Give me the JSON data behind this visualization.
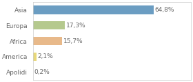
{
  "categories": [
    "Asia",
    "Europa",
    "Africa",
    "America",
    "Apolidi"
  ],
  "values": [
    64.8,
    17.3,
    15.7,
    2.1,
    0.2
  ],
  "labels": [
    "64,8%",
    "17,3%",
    "15,7%",
    "2,1%",
    "0,2%"
  ],
  "bar_colors": [
    "#6b9dc2",
    "#b5c98e",
    "#e8b98a",
    "#e8d87a",
    "#d3d3d3"
  ],
  "background_color": "#ffffff",
  "xlim": [
    0,
    85
  ],
  "label_fontsize": 6.5,
  "tick_fontsize": 6.5,
  "bar_height": 0.55
}
